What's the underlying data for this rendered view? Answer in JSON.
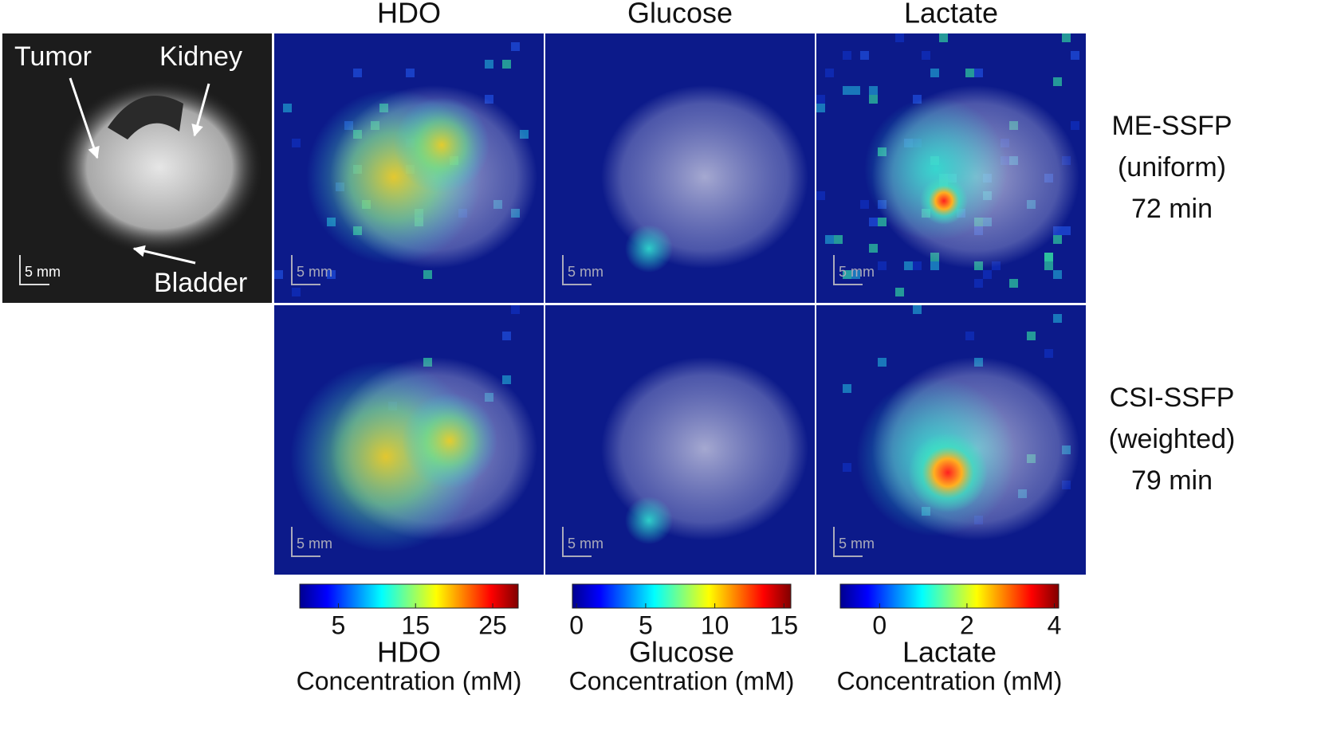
{
  "column_titles": [
    "HDO",
    "Glucose",
    "Lactate"
  ],
  "row_labels": [
    [
      "ME-SSFP",
      "(uniform)",
      "72 min"
    ],
    [
      "CSI-SSFP",
      "(weighted)",
      "79 min"
    ]
  ],
  "annotations": {
    "tumor": "Tumor",
    "kidney": "Kidney",
    "bladder": "Bladder"
  },
  "scale_bar": "5 mm",
  "colorbars": [
    {
      "name": "HDO",
      "unit": "Concentration (mM)",
      "lim": [
        0,
        28.3
      ],
      "ticks": [
        5,
        15,
        25
      ]
    },
    {
      "name": "Glucose",
      "unit": "Concentration (mM)",
      "lim": [
        -0.3,
        15.5
      ],
      "ticks": [
        0,
        5,
        10,
        15
      ]
    },
    {
      "name": "Lactate",
      "unit": "Concentration (mM)",
      "lim": [
        -0.9,
        4.1
      ],
      "ticks": [
        0,
        2,
        4
      ]
    }
  ]
}
